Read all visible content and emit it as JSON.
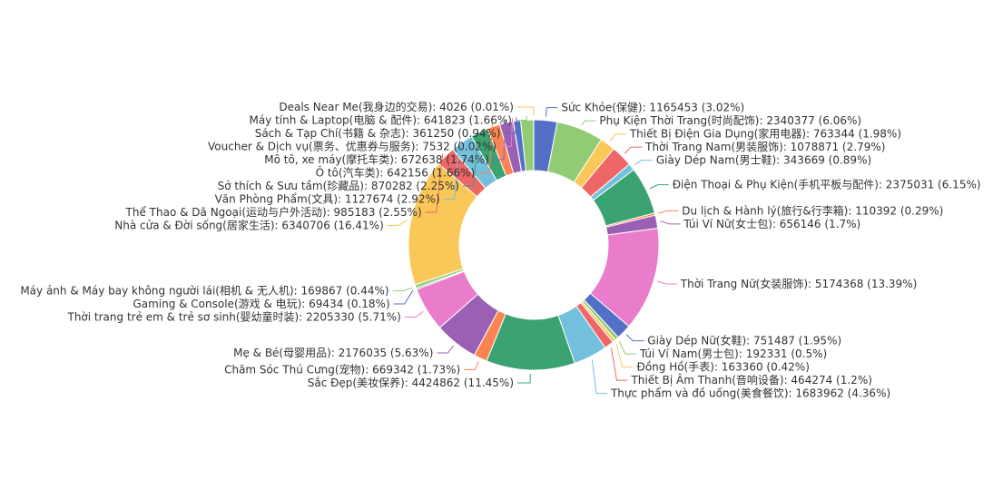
{
  "chart_data": {
    "type": "pie",
    "variant": "donut",
    "label_format": "{name}: {value} ({percent}%)",
    "slices": [
      {
        "name": "Sức Khỏe(保健)",
        "value": 1165453,
        "percent": "3.02",
        "color": "#5470c6"
      },
      {
        "name": "Phụ Kiện Thời Trang(时尚配饰)",
        "value": 2340377,
        "percent": "6.06",
        "color": "#91cc75"
      },
      {
        "name": "Thiết Bị Điện Gia Dụng(家用电器)",
        "value": 763344,
        "percent": "1.98",
        "color": "#fac858"
      },
      {
        "name": "Thời Trang Nam(男装服饰)",
        "value": 1078871,
        "percent": "2.79",
        "color": "#ee6666"
      },
      {
        "name": "Giày Dép Nam(男士鞋)",
        "value": 343669,
        "percent": "0.89",
        "color": "#73c0de"
      },
      {
        "name": "Điện Thoại & Phụ Kiện(手机平板与配件)",
        "value": 2375031,
        "percent": "6.15",
        "color": "#3ba272"
      },
      {
        "name": "Du lịch & Hành lý(旅行&行李箱)",
        "value": 110392,
        "percent": "0.29",
        "color": "#fc8452"
      },
      {
        "name": "Túi Ví Nữ(女士包)",
        "value": 656146,
        "percent": "1.7",
        "color": "#9a60b4"
      },
      {
        "name": "Thời Trang Nữ(女装服饰)",
        "value": 5174368,
        "percent": "13.39",
        "color": "#ea7ccc"
      },
      {
        "name": "Giày Dép Nữ(女鞋)",
        "value": 751487,
        "percent": "1.95",
        "color": "#5470c6"
      },
      {
        "name": "Túi Ví Nam(男士包)",
        "value": 192331,
        "percent": "0.5",
        "color": "#91cc75"
      },
      {
        "name": "Đồng Hồ(手表)",
        "value": 163360,
        "percent": "0.42",
        "color": "#fac858"
      },
      {
        "name": "Thiết Bị Âm Thanh(音响设备)",
        "value": 464274,
        "percent": "1.2",
        "color": "#ee6666"
      },
      {
        "name": "Thực phẩm và đồ uống(美食餐饮)",
        "value": 1683962,
        "percent": "4.36",
        "color": "#73c0de"
      },
      {
        "name": "Sắc Đẹp(美妆保养)",
        "value": 4424862,
        "percent": "11.45",
        "color": "#3ba272"
      },
      {
        "name": "Chăm Sóc Thú Cưng(宠物)",
        "value": 669342,
        "percent": "1.73",
        "color": "#fc8452"
      },
      {
        "name": "Mẹ & Bé(母婴用品)",
        "value": 2176035,
        "percent": "5.63",
        "color": "#9a60b4"
      },
      {
        "name": "Thời trang trẻ em & trẻ sơ sinh(婴幼童时装)",
        "value": 2205330,
        "percent": "5.71",
        "color": "#ea7ccc"
      },
      {
        "name": "Gaming & Console(游戏 & 电玩)",
        "value": 69434,
        "percent": "0.18",
        "color": "#5470c6"
      },
      {
        "name": "Máy ảnh & Máy bay không người lái(相机 & 无人机)",
        "value": 169867,
        "percent": "0.44",
        "color": "#91cc75"
      },
      {
        "name": "Nhà cửa & Đời sống(居家生活)",
        "value": 6340706,
        "percent": "16.41",
        "color": "#fac858"
      },
      {
        "name": "Thể Thao & Dã Ngoại(运动与户外活动)",
        "value": 985183,
        "percent": "2.55",
        "color": "#ee6666"
      },
      {
        "name": "Văn Phòng Phẩm(文具)",
        "value": 1127674,
        "percent": "2.92",
        "color": "#73c0de"
      },
      {
        "name": "Sở thích & Sưu tầm(珍藏品)",
        "value": 870282,
        "percent": "2.25",
        "color": "#3ba272"
      },
      {
        "name": "Ô tô(汽车类)",
        "value": 642156,
        "percent": "1.66",
        "color": "#fc8452"
      },
      {
        "name": "Mô tô, xe máy(摩托车类)",
        "value": 672638,
        "percent": "1.74",
        "color": "#9a60b4"
      },
      {
        "name": "Voucher & Dịch vụ(票务、优惠券与服务)",
        "value": 7532,
        "percent": "0.02",
        "color": "#ea7ccc"
      },
      {
        "name": "Sách & Tạp Chí(书籍 & 杂志)",
        "value": 361250,
        "percent": "0.94",
        "color": "#5470c6"
      },
      {
        "name": "Máy tính & Laptop(电脑 & 配件)",
        "value": 641823,
        "percent": "1.66",
        "color": "#91cc75"
      },
      {
        "name": "Deals Near Me(我身边的交易)",
        "value": 4026,
        "percent": "0.01",
        "color": "#fac858"
      }
    ]
  }
}
